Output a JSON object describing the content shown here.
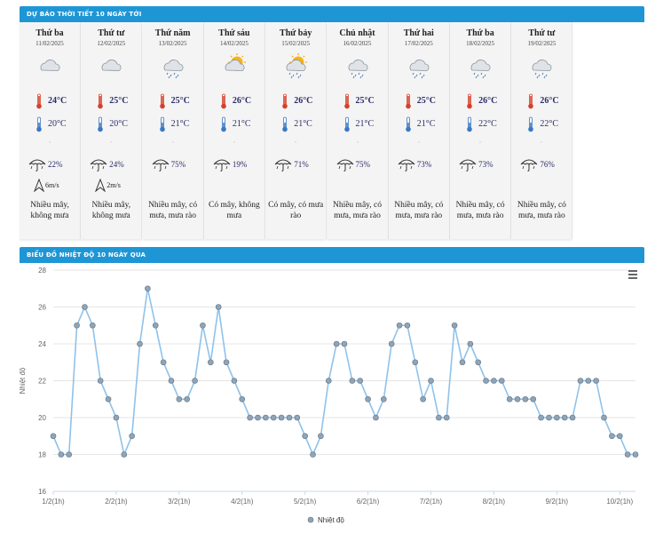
{
  "forecast": {
    "title": "DỰ BÁO THỜI TIẾT 10 NGÀY TỚI",
    "days": [
      {
        "name": "Thứ ba",
        "date": "11/02/2025",
        "icon": "cloud-icon",
        "hi": "24°C",
        "lo": "20°C",
        "rain": "22%",
        "wind": "6m/s",
        "desc": "Nhiều mây, không mưa"
      },
      {
        "name": "Thứ tư",
        "date": "12/02/2025",
        "icon": "cloud-icon",
        "hi": "25°C",
        "lo": "20°C",
        "rain": "24%",
        "wind": "2m/s",
        "desc": "Nhiều mây, không mưa"
      },
      {
        "name": "Thứ năm",
        "date": "13/02/2025",
        "icon": "cloud-rain-icon",
        "hi": "25°C",
        "lo": "21°C",
        "rain": "75%",
        "wind": "",
        "desc": "Nhiều mây, có mưa, mưa rào"
      },
      {
        "name": "Thứ sáu",
        "date": "14/02/2025",
        "icon": "sun-cloud-icon",
        "hi": "26°C",
        "lo": "21°C",
        "rain": "19%",
        "wind": "",
        "desc": "Có mây, không mưa"
      },
      {
        "name": "Thứ bảy",
        "date": "15/02/2025",
        "icon": "sun-cloud-rain-icon",
        "hi": "26°C",
        "lo": "21°C",
        "rain": "71%",
        "wind": "",
        "desc": "Có mây, có mưa rào"
      },
      {
        "name": "Chủ nhật",
        "date": "16/02/2025",
        "icon": "cloud-rain-icon",
        "hi": "25°C",
        "lo": "21°C",
        "rain": "75%",
        "wind": "",
        "desc": "Nhiều mây, có mưa, mưa rào"
      },
      {
        "name": "Thứ hai",
        "date": "17/02/2025",
        "icon": "cloud-rain-icon",
        "hi": "25°C",
        "lo": "21°C",
        "rain": "73%",
        "wind": "",
        "desc": "Nhiều mây, có mưa, mưa rào"
      },
      {
        "name": "Thứ ba",
        "date": "18/02/2025",
        "icon": "cloud-rain-icon",
        "hi": "26°C",
        "lo": "22°C",
        "rain": "73%",
        "wind": "",
        "desc": "Nhiều mây, có mưa, mưa rào"
      },
      {
        "name": "Thứ tư",
        "date": "19/02/2025",
        "icon": "cloud-rain-icon",
        "hi": "26°C",
        "lo": "22°C",
        "rain": "76%",
        "wind": "",
        "desc": "Nhiều mây, có mưa, mưa rào"
      }
    ]
  },
  "history": {
    "title": "BIỂU ĐỒ NHIỆT ĐỘ 10 NGÀY QUA"
  },
  "chart_data": {
    "type": "line",
    "ylabel": "Nhiệt độ",
    "legend": "Nhiệt độ",
    "legend_position": "bottom-center",
    "ylim": [
      16,
      28
    ],
    "yticks": [
      16,
      18,
      20,
      22,
      24,
      26,
      28
    ],
    "xticks": [
      {
        "label": "1/2(1h)",
        "index": 0
      },
      {
        "label": "2/2(1h)",
        "index": 8
      },
      {
        "label": "3/2(1h)",
        "index": 16
      },
      {
        "label": "4/2(1h)",
        "index": 24
      },
      {
        "label": "5/2(1h)",
        "index": 32
      },
      {
        "label": "6/2(1h)",
        "index": 40
      },
      {
        "label": "7/2(1h)",
        "index": 48
      },
      {
        "label": "8/2(1h)",
        "index": 56
      },
      {
        "label": "9/2(1h)",
        "index": 64
      },
      {
        "label": "10/2(1h)",
        "index": 72
      }
    ],
    "grid": true,
    "color": "#8fc2ea",
    "marker_color": "#90a4b6",
    "series": [
      {
        "name": "Nhiệt độ",
        "values": [
          19,
          18,
          18,
          25,
          26,
          25,
          22,
          21,
          20,
          18,
          19,
          24,
          27,
          25,
          23,
          22,
          21,
          21,
          22,
          25,
          23,
          26,
          23,
          22,
          21,
          20,
          20,
          20,
          20,
          20,
          20,
          20,
          19,
          18,
          19,
          22,
          24,
          24,
          22,
          22,
          21,
          20,
          21,
          24,
          25,
          25,
          23,
          21,
          22,
          20,
          20,
          25,
          23,
          24,
          23,
          22,
          22,
          22,
          21,
          21,
          21,
          21,
          20,
          20,
          20,
          20,
          20,
          22,
          22,
          22,
          20,
          19,
          19,
          18,
          18
        ]
      }
    ]
  }
}
